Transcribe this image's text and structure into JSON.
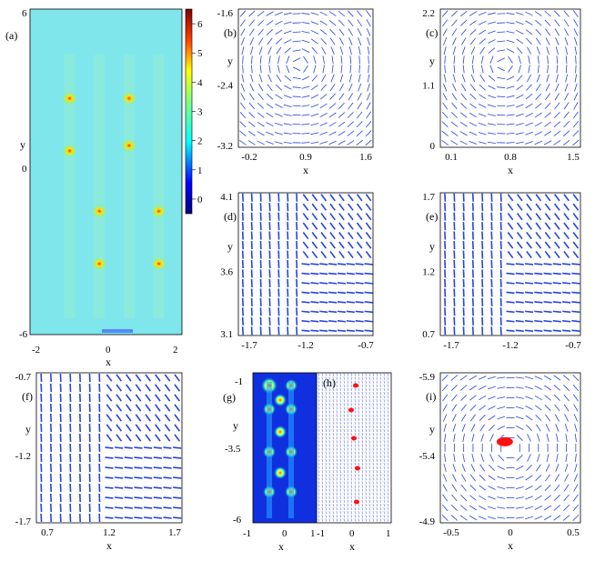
{
  "colorbar": {
    "ticks": [
      "6",
      "5",
      "4",
      "3",
      "2",
      "1",
      "0"
    ],
    "values": [
      6,
      5,
      4,
      3,
      2,
      1,
      0
    ],
    "range": [
      -0.5,
      6.5
    ]
  },
  "panels": [
    {
      "id": "a",
      "label": "(a)",
      "type": "heatmap",
      "xlabel": "x",
      "ylabel": "y",
      "xticks": [
        "-2",
        "0",
        "2"
      ],
      "yticks": [
        "6",
        "0",
        "-6"
      ],
      "xlim": [
        -2.3,
        2.3
      ],
      "ylim": [
        -6.2,
        6.2
      ],
      "hotspots": [
        [
          -1.1,
          2.8
        ],
        [
          0.7,
          2.8
        ],
        [
          -1.1,
          0.8
        ],
        [
          0.7,
          1.0
        ],
        [
          -0.2,
          -1.5
        ],
        [
          1.6,
          -1.5
        ],
        [
          -0.2,
          -3.5
        ],
        [
          1.6,
          -3.5
        ]
      ]
    },
    {
      "id": "b",
      "label": "(b)",
      "type": "vector",
      "xlabel": "x",
      "ylabel": "y",
      "xticks": [
        "-0.2",
        "0.9",
        "1.6"
      ],
      "yticks": [
        "-1.6",
        "-2.4",
        "-3.2"
      ],
      "pattern": "vortex"
    },
    {
      "id": "c",
      "label": "(c)",
      "type": "vector",
      "xlabel": "x",
      "ylabel": "y",
      "xticks": [
        "0.1",
        "0.8",
        "1.5"
      ],
      "yticks": [
        "2.2",
        "1.1",
        "0"
      ],
      "pattern": "vortex"
    },
    {
      "id": "d",
      "label": "(d)",
      "type": "vector",
      "xlabel": "",
      "ylabel": "y",
      "xticks": [
        "-1.7",
        "-1.2",
        "-0.7"
      ],
      "yticks": [
        "4.1",
        "3.6",
        "3.1"
      ],
      "pattern": "wall"
    },
    {
      "id": "e",
      "label": "(e)",
      "type": "vector",
      "xlabel": "",
      "ylabel": "y",
      "xticks": [
        "-1.7",
        "-1.2",
        "-0.7"
      ],
      "yticks": [
        "1.7",
        "1.2",
        "0.7"
      ],
      "pattern": "wall"
    },
    {
      "id": "f",
      "label": "(f)",
      "type": "vector",
      "xlabel": "x",
      "ylabel": "y",
      "xticks": [
        "0.7",
        "1.2",
        "1.7"
      ],
      "yticks": [
        "-0.7",
        "-1.2",
        "-1.7"
      ],
      "pattern": "wall"
    },
    {
      "id": "g",
      "label": "(g)",
      "type": "heatmap-narrow",
      "xlabel": "x",
      "ylabel": "y",
      "xticks": [
        "-1",
        "0",
        "1"
      ],
      "yticks": [
        "-1",
        "-3.5",
        "-6"
      ]
    },
    {
      "id": "h",
      "label": "(h)",
      "type": "vector-dense",
      "xlabel": "x",
      "ylabel": "",
      "xticks": [
        "-1",
        "0",
        "1"
      ],
      "yticks": []
    },
    {
      "id": "i",
      "label": "(i)",
      "type": "vector",
      "xlabel": "x",
      "ylabel": "y",
      "xticks": [
        "-0.5",
        "0",
        "0.5"
      ],
      "yticks": [
        "-5.9",
        "-5.4",
        "-4.9"
      ],
      "pattern": "vortex-core"
    }
  ]
}
